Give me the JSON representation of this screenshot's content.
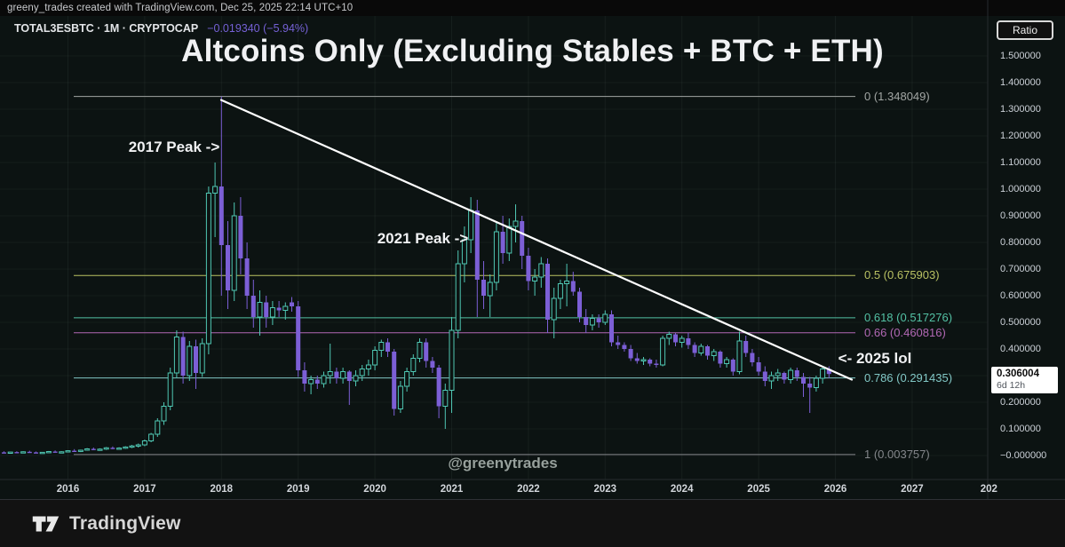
{
  "attribution": "greeny_trades created with TradingView.com, Dec 25, 2025 22:14 UTC+10",
  "symbol": {
    "title": "TOTAL3ESBTC · 1M · CRYPTOCAP",
    "change": "−0.019340 (−5.94%)",
    "change_color": "#7561d6"
  },
  "title": "Altcoins Only (Excluding Stables + BTC + ETH)",
  "watermark": "@greenytrades",
  "axis": {
    "ratio_label": "Ratio"
  },
  "annotations": [
    {
      "text": "2017 Peak ->"
    },
    {
      "text": "2021 Peak ->"
    },
    {
      "text": "<- 2025 lol"
    }
  ],
  "price_label": {
    "value": "0.306004",
    "countdown": "6d 12h"
  },
  "brand": {
    "name": "TradingView"
  },
  "chart_data": {
    "type": "candlestick",
    "symbol": "TOTAL3ESBTC",
    "timeframe": "1M",
    "start_month": "2015-03",
    "title": "Altcoins Only (Excluding Stables + BTC + ETH)",
    "ylim": [
      0.0,
      1.55
    ],
    "grid": true,
    "x_axis_years": [
      "2016",
      "2017",
      "2018",
      "2019",
      "2020",
      "2021",
      "2022",
      "2023",
      "2024",
      "2025",
      "2026",
      "2027",
      "202"
    ],
    "y_axis_ticks": [
      {
        "value": 1.5,
        "label": "1.500000"
      },
      {
        "value": 1.4,
        "label": "1.400000"
      },
      {
        "value": 1.3,
        "label": "1.300000"
      },
      {
        "value": 1.2,
        "label": "1.200000"
      },
      {
        "value": 1.1,
        "label": "1.100000"
      },
      {
        "value": 1.0,
        "label": "1.000000"
      },
      {
        "value": 0.9,
        "label": "0.900000"
      },
      {
        "value": 0.8,
        "label": "0.800000"
      },
      {
        "value": 0.7,
        "label": "0.700000"
      },
      {
        "value": 0.6,
        "label": "0.600000"
      },
      {
        "value": 0.5,
        "label": "0.500000"
      },
      {
        "value": 0.4,
        "label": "0.400000"
      },
      {
        "value": 0.2,
        "label": "0.200000"
      },
      {
        "value": 0.1,
        "label": "0.100000"
      },
      {
        "value": 0.0,
        "label": "−0.000000"
      }
    ],
    "fib_levels": [
      {
        "ratio": "0",
        "value": 1.348049,
        "label": "0 (1.348049)",
        "color": "#a2a6a4"
      },
      {
        "ratio": "0.5",
        "value": 0.675903,
        "label": "0.5 (0.675903)",
        "color": "#b9c163"
      },
      {
        "ratio": "0.618",
        "value": 0.517276,
        "label": "0.618 (0.517276)",
        "color": "#53c1a4"
      },
      {
        "ratio": "0.66",
        "value": 0.460816,
        "label": "0.66 (0.460816)",
        "color": "#b168b4"
      },
      {
        "ratio": "0.786",
        "value": 0.291435,
        "label": "0.786 (0.291435)",
        "color": "#82c8c6"
      },
      {
        "ratio": "1",
        "value": 0.003757,
        "label": "1 (0.003757)",
        "color": "#84878b"
      }
    ],
    "trendline": {
      "from_value": 1.348049,
      "to_value": 0.285,
      "color": "#ffffff"
    },
    "last_price": 0.306004,
    "colors": {
      "up": "#4fc7b3",
      "down": "#7c5fd6",
      "background": "#0c1312"
    },
    "candles_ohlc": [
      [
        0.012,
        0.016,
        0.008,
        0.01
      ],
      [
        0.01,
        0.014,
        0.007,
        0.013
      ],
      [
        0.013,
        0.016,
        0.009,
        0.011
      ],
      [
        0.011,
        0.016,
        0.009,
        0.014
      ],
      [
        0.014,
        0.018,
        0.011,
        0.012
      ],
      [
        0.012,
        0.015,
        0.008,
        0.01
      ],
      [
        0.01,
        0.013,
        0.007,
        0.012
      ],
      [
        0.012,
        0.017,
        0.01,
        0.015
      ],
      [
        0.015,
        0.019,
        0.012,
        0.013
      ],
      [
        0.013,
        0.016,
        0.01,
        0.014
      ],
      [
        0.014,
        0.02,
        0.012,
        0.018
      ],
      [
        0.018,
        0.024,
        0.015,
        0.016
      ],
      [
        0.016,
        0.022,
        0.013,
        0.02
      ],
      [
        0.02,
        0.028,
        0.018,
        0.025
      ],
      [
        0.025,
        0.03,
        0.02,
        0.022
      ],
      [
        0.022,
        0.027,
        0.018,
        0.024
      ],
      [
        0.024,
        0.032,
        0.021,
        0.029
      ],
      [
        0.029,
        0.034,
        0.024,
        0.026
      ],
      [
        0.026,
        0.031,
        0.022,
        0.028
      ],
      [
        0.028,
        0.035,
        0.025,
        0.032
      ],
      [
        0.032,
        0.04,
        0.028,
        0.036
      ],
      [
        0.036,
        0.045,
        0.03,
        0.04
      ],
      [
        0.04,
        0.06,
        0.035,
        0.055
      ],
      [
        0.055,
        0.085,
        0.05,
        0.08
      ],
      [
        0.08,
        0.14,
        0.07,
        0.13
      ],
      [
        0.13,
        0.2,
        0.115,
        0.185
      ],
      [
        0.185,
        0.33,
        0.17,
        0.31
      ],
      [
        0.31,
        0.47,
        0.29,
        0.445
      ],
      [
        0.445,
        0.465,
        0.27,
        0.3
      ],
      [
        0.3,
        0.43,
        0.28,
        0.41
      ],
      [
        0.41,
        0.435,
        0.25,
        0.31
      ],
      [
        0.31,
        0.44,
        0.295,
        0.42
      ],
      [
        0.42,
        1.01,
        0.38,
        0.985
      ],
      [
        0.985,
        1.1,
        0.82,
        1.01
      ],
      [
        1.01,
        1.348049,
        0.6,
        0.79
      ],
      [
        0.79,
        0.88,
        0.55,
        0.62
      ],
      [
        0.62,
        0.95,
        0.58,
        0.9
      ],
      [
        0.9,
        0.97,
        0.68,
        0.74
      ],
      [
        0.74,
        0.8,
        0.55,
        0.6
      ],
      [
        0.6,
        0.66,
        0.48,
        0.52
      ],
      [
        0.52,
        0.62,
        0.45,
        0.575
      ],
      [
        0.575,
        0.6,
        0.48,
        0.52
      ],
      [
        0.52,
        0.58,
        0.49,
        0.555
      ],
      [
        0.555,
        0.58,
        0.52,
        0.545
      ],
      [
        0.545,
        0.575,
        0.51,
        0.56
      ],
      [
        0.575,
        0.595,
        0.54,
        0.56
      ],
      [
        0.56,
        0.58,
        0.295,
        0.32
      ],
      [
        0.32,
        0.35,
        0.24,
        0.27
      ],
      [
        0.27,
        0.3,
        0.23,
        0.285
      ],
      [
        0.285,
        0.3,
        0.25,
        0.27
      ],
      [
        0.27,
        0.315,
        0.255,
        0.3
      ],
      [
        0.3,
        0.42,
        0.27,
        0.315
      ],
      [
        0.315,
        0.33,
        0.27,
        0.29
      ],
      [
        0.29,
        0.33,
        0.27,
        0.315
      ],
      [
        0.315,
        0.32,
        0.19,
        0.28
      ],
      [
        0.28,
        0.32,
        0.26,
        0.3
      ],
      [
        0.3,
        0.34,
        0.28,
        0.325
      ],
      [
        0.325,
        0.36,
        0.3,
        0.34
      ],
      [
        0.34,
        0.41,
        0.32,
        0.395
      ],
      [
        0.395,
        0.435,
        0.37,
        0.425
      ],
      [
        0.425,
        0.44,
        0.37,
        0.39
      ],
      [
        0.39,
        0.4,
        0.15,
        0.175
      ],
      [
        0.175,
        0.28,
        0.16,
        0.26
      ],
      [
        0.26,
        0.33,
        0.24,
        0.315
      ],
      [
        0.315,
        0.38,
        0.3,
        0.365
      ],
      [
        0.365,
        0.44,
        0.35,
        0.425
      ],
      [
        0.425,
        0.44,
        0.33,
        0.355
      ],
      [
        0.355,
        0.37,
        0.31,
        0.33
      ],
      [
        0.33,
        0.34,
        0.14,
        0.185
      ],
      [
        0.185,
        0.27,
        0.1,
        0.245
      ],
      [
        0.245,
        0.52,
        0.16,
        0.47
      ],
      [
        0.47,
        0.77,
        0.44,
        0.72
      ],
      [
        0.72,
        0.86,
        0.65,
        0.81
      ],
      [
        0.81,
        0.97,
        0.76,
        0.92
      ],
      [
        0.92,
        0.96,
        0.52,
        0.66
      ],
      [
        0.66,
        0.73,
        0.55,
        0.6
      ],
      [
        0.6,
        0.68,
        0.52,
        0.65
      ],
      [
        0.65,
        0.88,
        0.62,
        0.84
      ],
      [
        0.84,
        0.9,
        0.72,
        0.76
      ],
      [
        0.76,
        0.89,
        0.73,
        0.86
      ],
      [
        0.86,
        0.943,
        0.8,
        0.88
      ],
      [
        0.88,
        0.9,
        0.7,
        0.75
      ],
      [
        0.75,
        0.78,
        0.62,
        0.655
      ],
      [
        0.655,
        0.7,
        0.6,
        0.67
      ],
      [
        0.67,
        0.745,
        0.63,
        0.72
      ],
      [
        0.72,
        0.74,
        0.46,
        0.51
      ],
      [
        0.51,
        0.63,
        0.44,
        0.59
      ],
      [
        0.59,
        0.66,
        0.55,
        0.645
      ],
      [
        0.645,
        0.72,
        0.56,
        0.655
      ],
      [
        0.655,
        0.69,
        0.6,
        0.615
      ],
      [
        0.615,
        0.63,
        0.5,
        0.52
      ],
      [
        0.52,
        0.55,
        0.46,
        0.49
      ],
      [
        0.49,
        0.53,
        0.47,
        0.515
      ],
      [
        0.515,
        0.53,
        0.48,
        0.5
      ],
      [
        0.5,
        0.545,
        0.49,
        0.53
      ],
      [
        0.53,
        0.545,
        0.41,
        0.425
      ],
      [
        0.425,
        0.45,
        0.4,
        0.415
      ],
      [
        0.415,
        0.425,
        0.39,
        0.4
      ],
      [
        0.4,
        0.415,
        0.355,
        0.365
      ],
      [
        0.365,
        0.385,
        0.345,
        0.355
      ],
      [
        0.355,
        0.37,
        0.34,
        0.36
      ],
      [
        0.36,
        0.365,
        0.335,
        0.345
      ],
      [
        0.345,
        0.36,
        0.33,
        0.34
      ],
      [
        0.34,
        0.45,
        0.335,
        0.44
      ],
      [
        0.44,
        0.465,
        0.415,
        0.455
      ],
      [
        0.455,
        0.46,
        0.41,
        0.425
      ],
      [
        0.425,
        0.45,
        0.405,
        0.44
      ],
      [
        0.44,
        0.46,
        0.4,
        0.415
      ],
      [
        0.415,
        0.425,
        0.37,
        0.385
      ],
      [
        0.385,
        0.42,
        0.375,
        0.41
      ],
      [
        0.41,
        0.415,
        0.36,
        0.375
      ],
      [
        0.375,
        0.4,
        0.355,
        0.39
      ],
      [
        0.39,
        0.395,
        0.33,
        0.345
      ],
      [
        0.345,
        0.37,
        0.33,
        0.36
      ],
      [
        0.36,
        0.365,
        0.3,
        0.315
      ],
      [
        0.315,
        0.465,
        0.305,
        0.43
      ],
      [
        0.43,
        0.45,
        0.37,
        0.385
      ],
      [
        0.385,
        0.4,
        0.335,
        0.35
      ],
      [
        0.35,
        0.37,
        0.3,
        0.315
      ],
      [
        0.315,
        0.335,
        0.26,
        0.28
      ],
      [
        0.28,
        0.315,
        0.25,
        0.3
      ],
      [
        0.3,
        0.325,
        0.28,
        0.31
      ],
      [
        0.31,
        0.315,
        0.27,
        0.285
      ],
      [
        0.285,
        0.33,
        0.27,
        0.32
      ],
      [
        0.32,
        0.33,
        0.28,
        0.295
      ],
      [
        0.295,
        0.31,
        0.22,
        0.27
      ],
      [
        0.27,
        0.295,
        0.16,
        0.255
      ],
      [
        0.255,
        0.3,
        0.24,
        0.29
      ],
      [
        0.29,
        0.335,
        0.27,
        0.325
      ],
      [
        0.3254,
        0.335,
        0.29,
        0.306004
      ]
    ]
  }
}
